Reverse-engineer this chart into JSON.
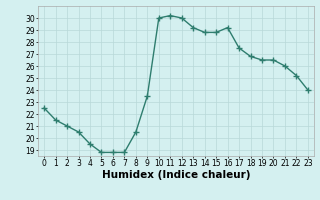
{
  "x": [
    0,
    1,
    2,
    3,
    4,
    5,
    6,
    7,
    8,
    9,
    10,
    11,
    12,
    13,
    14,
    15,
    16,
    17,
    18,
    19,
    20,
    21,
    22,
    23
  ],
  "y": [
    22.5,
    21.5,
    21.0,
    20.5,
    19.5,
    18.8,
    18.8,
    18.8,
    20.5,
    23.5,
    30.0,
    30.2,
    30.0,
    29.2,
    28.8,
    28.8,
    29.2,
    27.5,
    26.8,
    26.5,
    26.5,
    26.0,
    25.2,
    24.0
  ],
  "line_color": "#2e7d6e",
  "marker": "+",
  "marker_size": 4,
  "bg_color": "#d4f0f0",
  "plot_bg_color": "#d4f0f0",
  "grid_color": "#b8d8d8",
  "xlabel": "Humidex (Indice chaleur)",
  "xlim": [
    -0.5,
    23.5
  ],
  "ylim": [
    18.5,
    31.0
  ],
  "yticks": [
    19,
    20,
    21,
    22,
    23,
    24,
    25,
    26,
    27,
    28,
    29,
    30
  ],
  "xticks": [
    0,
    1,
    2,
    3,
    4,
    5,
    6,
    7,
    8,
    9,
    10,
    11,
    12,
    13,
    14,
    15,
    16,
    17,
    18,
    19,
    20,
    21,
    22,
    23
  ],
  "tick_fontsize": 5.5,
  "xlabel_fontsize": 7.5,
  "line_width": 1.0
}
